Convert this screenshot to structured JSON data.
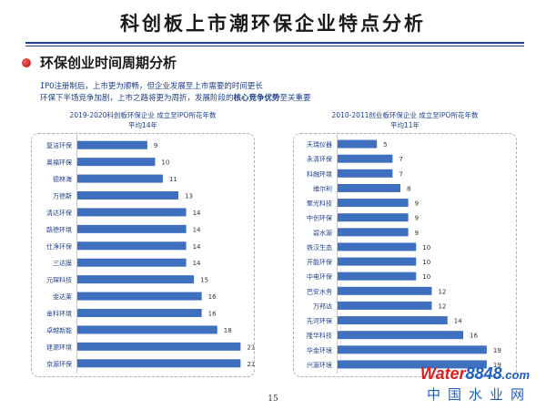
{
  "header": {
    "title": "科创板上市潮环保企业特点分析",
    "section_title": "环保创业时间周期分析"
  },
  "description": {
    "line1": "IPO注册制后，上市更为顺畅，但企业发展至上市需要的时间更长",
    "line2_pre": "环保下半场竞争加剧，上市之路将更为周折，发展阶段的",
    "line2_hl": "核心竞争优势",
    "line2_post": "至关重要"
  },
  "colors": {
    "bar": "#3f6fbf",
    "accent": "#1f3f8c"
  },
  "chart_data": [
    {
      "type": "bar",
      "orientation": "horizontal",
      "title": "2019-2020科创板环保企业 成立至IPO所花年数",
      "subtitle": "平均14年",
      "categories": [
        "复洁环保",
        "奥福环保",
        "德林海",
        "万德斯",
        "清达环保",
        "路德环境",
        "仕净环保",
        "三达膜",
        "元琛科技",
        "金达莱",
        "金科环境",
        "卓越新能",
        "建源环境",
        "京源环保"
      ],
      "values": [
        9,
        10,
        11,
        13,
        14,
        14,
        14,
        14,
        15,
        16,
        16,
        18,
        21,
        21
      ],
      "xlim": [
        0,
        24
      ],
      "data_labels": true
    },
    {
      "type": "bar",
      "orientation": "horizontal",
      "title": "2010-2011创业板环保企业 成立至IPO所花年数",
      "subtitle": "平均11年",
      "categories": [
        "天瑞仪器",
        "永清环保",
        "科融环境",
        "维尔利",
        "聚光科技",
        "中创环保",
        "碧水源",
        "铁汉生态",
        "开能环保",
        "中电环保",
        "巴安水务",
        "万邦达",
        "先河环保",
        "隆华科技",
        "华金环境",
        "兴源环境"
      ],
      "values": [
        5,
        7,
        7,
        8,
        9,
        9,
        9,
        10,
        10,
        10,
        12,
        12,
        14,
        16,
        19,
        19
      ],
      "xlim": [
        0,
        24
      ],
      "data_labels": true
    }
  ],
  "footer": {
    "page_number": "15"
  },
  "watermark": {
    "logo_part1": "Water",
    "logo_part2": "8848",
    "logo_part3": ".com",
    "logo_cn": "中国水业网"
  }
}
